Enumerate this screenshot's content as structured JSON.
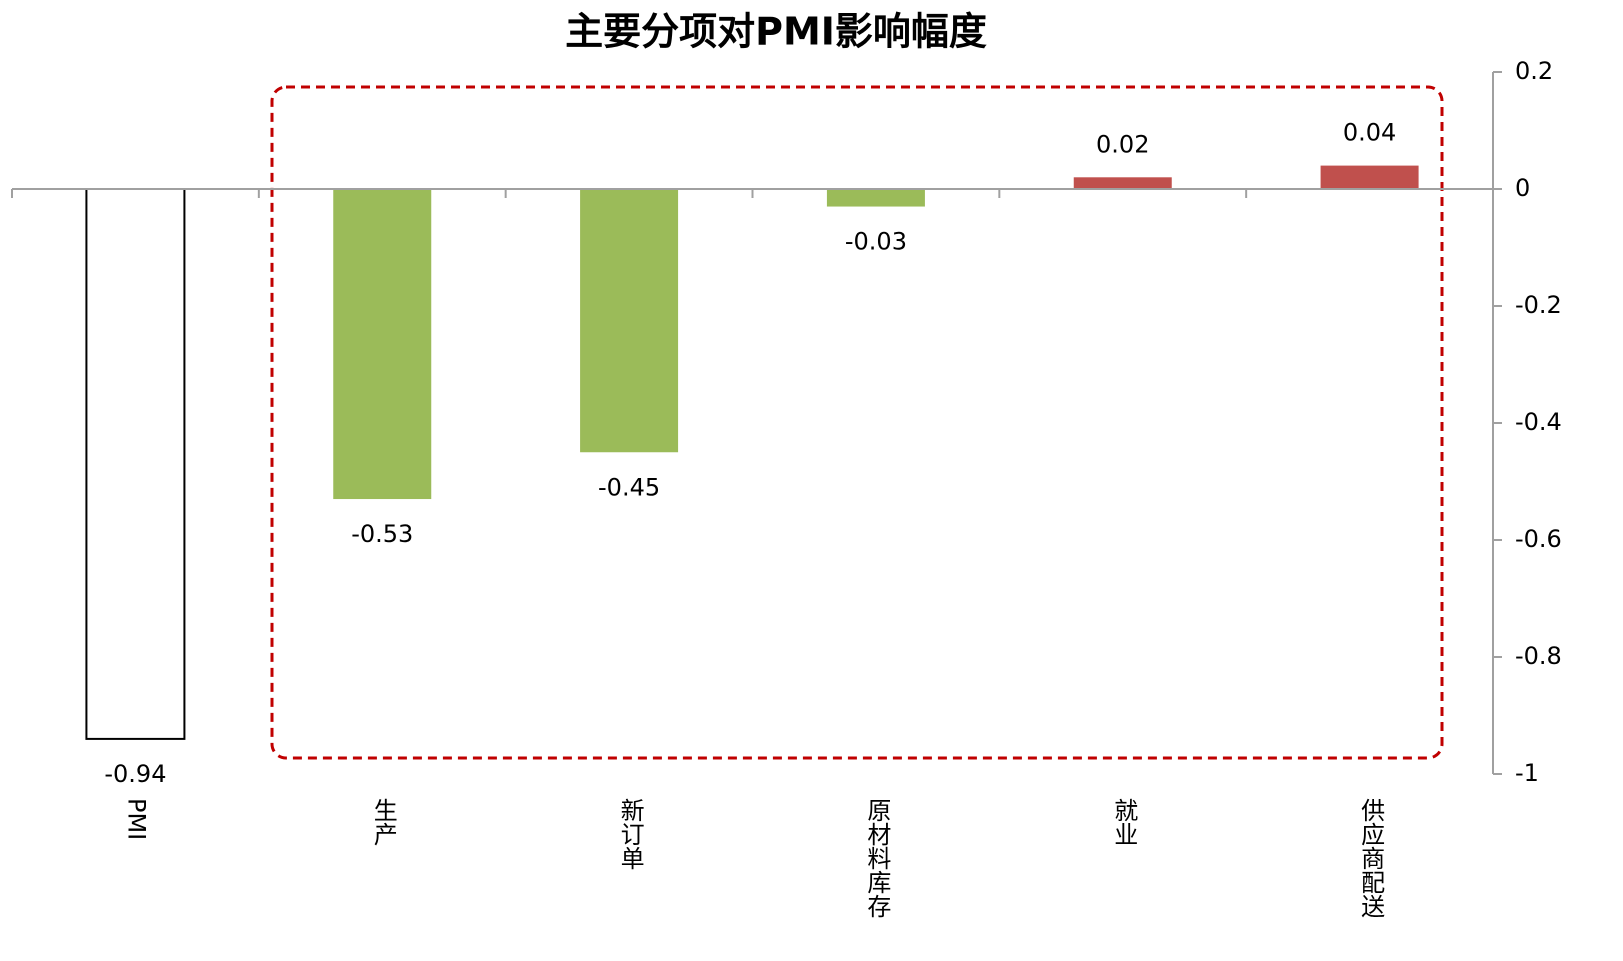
{
  "chart_data": {
    "type": "bar",
    "title": "主要分项对PMI影响幅度",
    "categories": [
      "PMI",
      "生产",
      "新订单",
      "原材料库存",
      "就业",
      "供应商配送"
    ],
    "values": [
      -0.94,
      -0.53,
      -0.45,
      -0.03,
      0.02,
      0.04
    ],
    "colors": [
      "#ffffff",
      "#9bbb59",
      "#9bbb59",
      "#9bbb59",
      "#c0504d",
      "#c0504d"
    ],
    "ylim": [
      -1,
      0.2
    ],
    "yticks": [
      0.2,
      0,
      -0.2,
      -0.4,
      -0.6,
      -0.8,
      -1
    ],
    "y_axis_side": "right"
  }
}
